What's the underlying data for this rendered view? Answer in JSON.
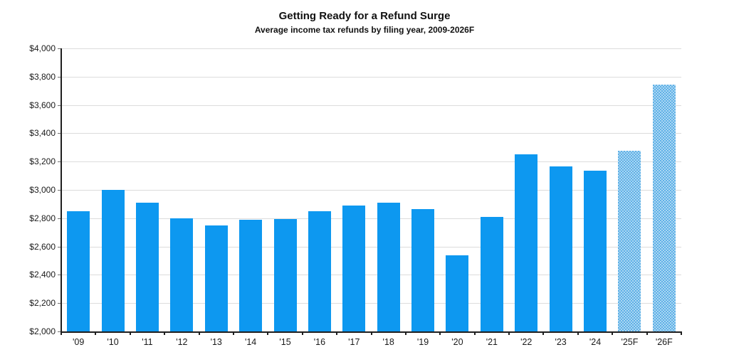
{
  "chart_data": {
    "type": "bar",
    "title": "Getting Ready for a Refund Surge",
    "subtitle": "Average income tax refunds by filing year, 2009-2026F",
    "xlabel": "",
    "ylabel": "",
    "categories": [
      "'09",
      "'10",
      "'11",
      "'12",
      "'13",
      "'14",
      "'15",
      "'16",
      "'17",
      "'18",
      "'19",
      "'20",
      "'21",
      "'22",
      "'23",
      "'24",
      "'25F",
      "'26F"
    ],
    "values": [
      2850,
      3000,
      2910,
      2800,
      2750,
      2790,
      2795,
      2850,
      2890,
      2910,
      2865,
      2540,
      2810,
      3250,
      3165,
      3135,
      3275,
      3745
    ],
    "forecast": [
      false,
      false,
      false,
      false,
      false,
      false,
      false,
      false,
      false,
      false,
      false,
      false,
      false,
      false,
      false,
      false,
      true,
      true
    ],
    "ylim": [
      2000,
      4000
    ],
    "y_tick_step": 200,
    "y_tick_labels": [
      "$4,000",
      "$3,800",
      "$3,600",
      "$3,400",
      "$3,200",
      "$3,000",
      "$2,800",
      "$2,600",
      "$2,400",
      "$2,200",
      "$2,000"
    ],
    "grid": "horizontal",
    "legend_position": "none",
    "colors": {
      "bar_actual": "#0d98f0",
      "bar_forecast_base": "#5fb0e6",
      "bar_forecast_dots": "#abd7f3",
      "gridline": "#dcdcdc",
      "axis": "#1f1f1f",
      "text": "#1a1a1a",
      "background": "#ffffff"
    }
  }
}
